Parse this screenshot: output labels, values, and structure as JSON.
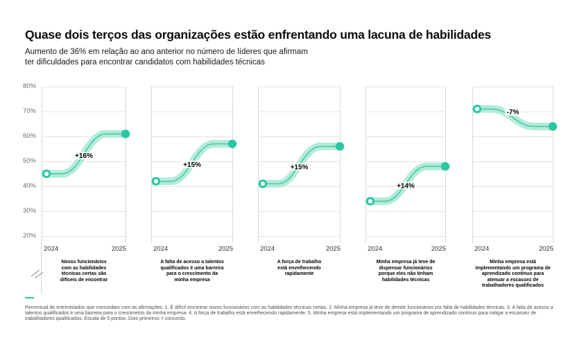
{
  "header": {
    "title": "Quase dois terços das organizações estão enfrentando uma lacuna de habilidades",
    "subtitle": "Aumento de 36% em relação ao ano anterior no número de líderes que afirmam\nter dificuldades para encontrar candidatos com habilidades técnicas"
  },
  "colors": {
    "accent": "#2cc6a1",
    "band": "#b2ebda",
    "inner_line": "#3fc4a0",
    "grid": "#e3e3e3",
    "panel_border": "#d8d8d8",
    "axis_break": "#9b9b9b"
  },
  "chart_data": {
    "type": "line",
    "variant": "slope-small-multiples",
    "title": "Quase dois terços das organizações estão enfrentando uma lacuna de habilidades",
    "subtitle": "Aumento de 36% em relação ao ano anterior no número de líderes que afirmam ter dificuldades para encontrar candidatos com habilidades técnicas",
    "categories": [
      "2024",
      "2025"
    ],
    "ylim": [
      20,
      80
    ],
    "yticks": [
      "80%",
      "70%",
      "60%",
      "50%",
      "40%",
      "30%",
      "20%"
    ],
    "grid": true,
    "legend_position": "none",
    "series": [
      {
        "caption": "Novos funcionários\ncom as habilidades\ntécnicas certas são\ndifíceis de encontrar",
        "values": [
          45,
          61
        ],
        "change_label": "+16%"
      },
      {
        "caption": "A falta de acesso a talentos\nqualificados é uma barreira\npara o crescimento da\nminha empresa",
        "values": [
          42,
          57
        ],
        "change_label": "+15%"
      },
      {
        "caption": "A força de trabalho\nestá envelhecendo\nrapidamente",
        "values": [
          41,
          56
        ],
        "change_label": "+15%"
      },
      {
        "caption": "Minha empresa já teve de\ndispensar funcionários\nporque eles não tinham\nhabilidades técnicas",
        "values": [
          34,
          48
        ],
        "change_label": "+14%"
      },
      {
        "caption": "Minha empresa está\nimplementando um programa de\naprendizado contínuo para\natenuar a escassez de\ntrabalhadores qualificados",
        "values": [
          71,
          64
        ],
        "change_label": "-7%"
      }
    ]
  },
  "footnote": "Percentual de entrevistados que concordam com as afirmações: 1. É difícil encontrar novos funcionários com as habilidades técnicas certas. 2. Minha empresa já teve de demitir funcionários por falta de habilidades técnicas. 3. A falta de acesso a talentos qualificados é uma barreira para o crescimento da minha empresa. 4. A força de trabalho está envelhecendo rapidamente. 5. Minha empresa está implementando um programa de aprendizado contínuo para mitigar a escassez de trabalhadores qualificados. Escala de 5 pontos. Dois primeiros = concordo."
}
